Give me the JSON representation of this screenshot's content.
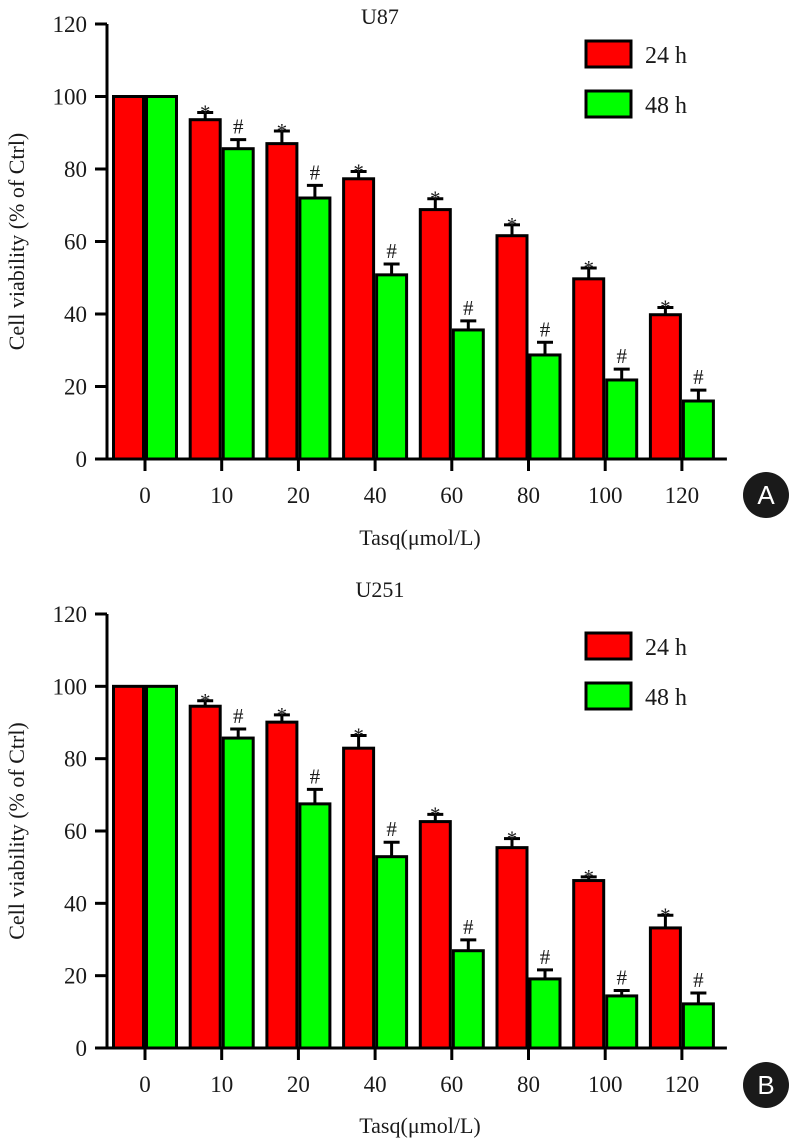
{
  "colors": {
    "series_24h": "#ff0000",
    "series_48h": "#00ff00",
    "axis": "#000000",
    "panel_badge": "#1a1a1a"
  },
  "chart_data": [
    {
      "type": "bar",
      "panel": "A",
      "title": "U87",
      "xlabel": "Tasq(μmol/L)",
      "ylabel": "Cell viability (% of Ctrl)",
      "ylim": [
        0,
        120
      ],
      "yticks": [
        "0",
        "20",
        "40",
        "60",
        "80",
        "100",
        "120"
      ],
      "categories": [
        "0",
        "10",
        "20",
        "40",
        "60",
        "80",
        "100",
        "120"
      ],
      "legend_position": "top-right",
      "grid": false,
      "series": [
        {
          "name": "24 h",
          "values": [
            100,
            93.6,
            87,
            77.3,
            68.8,
            61.6,
            49.7,
            39.8
          ],
          "errors": [
            0,
            2,
            3.5,
            2,
            3,
            3,
            3,
            2
          ],
          "markers": [
            "",
            "*",
            "*",
            "*",
            "*",
            "*",
            "*",
            "*"
          ]
        },
        {
          "name": "48 h",
          "values": [
            100,
            85.6,
            72,
            50.8,
            35.6,
            28.7,
            21.8,
            16
          ],
          "errors": [
            0,
            2.5,
            3.5,
            3,
            2.5,
            3.5,
            3,
            3
          ],
          "markers": [
            "",
            "#",
            "#",
            "#",
            "#",
            "#",
            "#",
            "#"
          ]
        }
      ]
    },
    {
      "type": "bar",
      "panel": "B",
      "title": "U251",
      "xlabel": "Tasq(μmol/L)",
      "ylabel": "Cell viability (% of Ctrl)",
      "ylim": [
        0,
        120
      ],
      "yticks": [
        "0",
        "20",
        "40",
        "60",
        "80",
        "100",
        "120"
      ],
      "categories": [
        "0",
        "10",
        "20",
        "40",
        "60",
        "80",
        "100",
        "120"
      ],
      "legend_position": "top-right",
      "grid": false,
      "series": [
        {
          "name": "24 h",
          "values": [
            100,
            94.5,
            90.1,
            82.9,
            62.6,
            55.4,
            46.3,
            33.2
          ],
          "errors": [
            0,
            1.5,
            2,
            3.5,
            2,
            2.5,
            1,
            3.5
          ],
          "markers": [
            "",
            "*",
            "*",
            "*",
            "*",
            "*",
            "*",
            "*"
          ]
        },
        {
          "name": "48 h",
          "values": [
            100,
            85.7,
            67.5,
            52.9,
            26.9,
            19.1,
            14.4,
            12.2
          ],
          "errors": [
            0,
            2.5,
            4,
            4,
            3,
            2.5,
            1.5,
            3
          ],
          "markers": [
            "",
            "#",
            "#",
            "#",
            "#",
            "#",
            "#",
            "#"
          ]
        }
      ]
    }
  ]
}
